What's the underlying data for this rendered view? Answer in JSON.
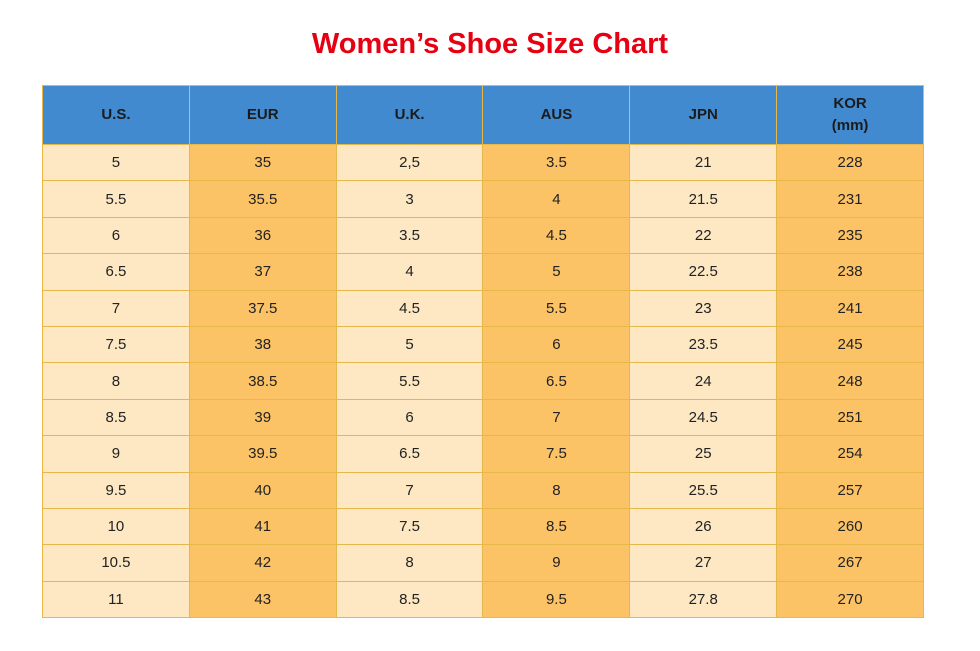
{
  "title": "Women’s Shoe Size Chart",
  "columns": [
    {
      "label": "U.S.",
      "sub": ""
    },
    {
      "label": "EUR",
      "sub": ""
    },
    {
      "label": "U.K.",
      "sub": ""
    },
    {
      "label": "AUS",
      "sub": ""
    },
    {
      "label": "JPN",
      "sub": ""
    },
    {
      "label": "KOR",
      "sub": "(mm)"
    }
  ],
  "rows": [
    [
      "5",
      "35",
      "2,5",
      "3.5",
      "21",
      "228"
    ],
    [
      "5.5",
      "35.5",
      "3",
      "4",
      "21.5",
      "231"
    ],
    [
      "6",
      "36",
      "3.5",
      "4.5",
      "22",
      "235"
    ],
    [
      "6.5",
      "37",
      "4",
      "5",
      "22.5",
      "238"
    ],
    [
      "7",
      "37.5",
      "4.5",
      "5.5",
      "23",
      "241"
    ],
    [
      "7.5",
      "38",
      "5",
      "6",
      "23.5",
      "245"
    ],
    [
      "8",
      "38.5",
      "5.5",
      "6.5",
      "24",
      "248"
    ],
    [
      "8.5",
      "39",
      "6",
      "7",
      "24.5",
      "251"
    ],
    [
      "9",
      "39.5",
      "6.5",
      "7.5",
      "25",
      "254"
    ],
    [
      "9.5",
      "40",
      "7",
      "8",
      "25.5",
      "257"
    ],
    [
      "10",
      "41",
      "7.5",
      "8.5",
      "26",
      "260"
    ],
    [
      "10.5",
      "42",
      "8",
      "9",
      "27",
      "267"
    ],
    [
      "11",
      "43",
      "8.5",
      "9.5",
      "27.8",
      "270"
    ]
  ],
  "colors": {
    "title": "#e60012",
    "header_bg": "#418ad0",
    "light_cell": "#fde8c3",
    "dark_cell": "#fcc266",
    "border": "#e6b84a"
  }
}
